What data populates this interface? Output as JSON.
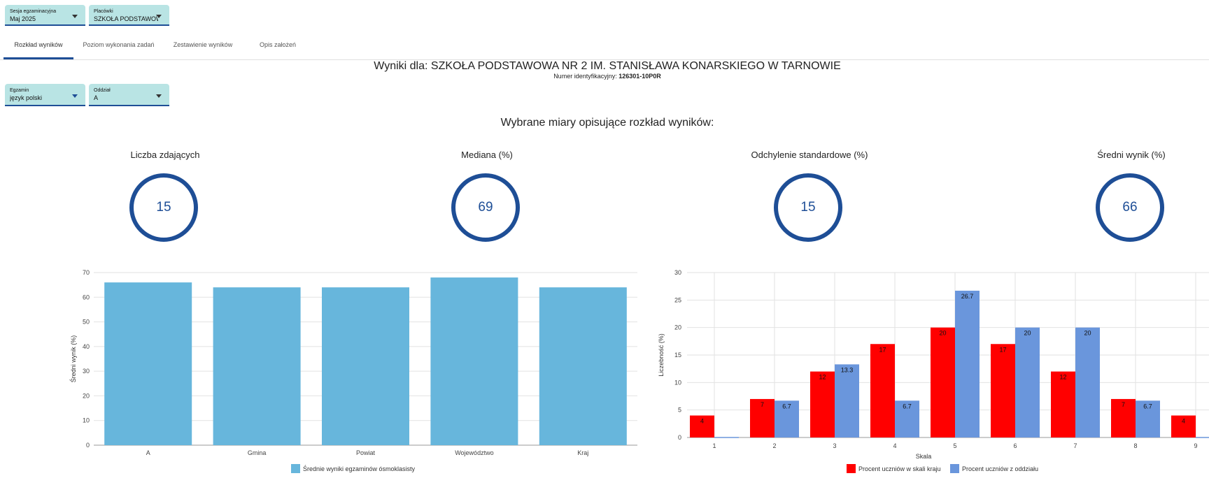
{
  "filters": {
    "session": {
      "label": "Sesja egzaminacyjna",
      "value": "Maj 2025"
    },
    "institution": {
      "label": "Placówki",
      "value": "SZKOŁA PODSTAWOWA..."
    },
    "exam": {
      "label": "Egzamin",
      "value": "język polski"
    },
    "class": {
      "label": "Oddział",
      "value": "A"
    }
  },
  "tabs": [
    {
      "label": "Rozkład wyników",
      "active": true
    },
    {
      "label": "Poziom wykonania zadań",
      "active": false
    },
    {
      "label": "Zestawienie wyników",
      "active": false
    },
    {
      "label": "Opis założeń",
      "active": false
    }
  ],
  "header": {
    "title": "Wyniki dla: SZKOŁA PODSTAWOWA NR 2 IM. STANISŁAWA KONARSKIEGO W TARNOWIE",
    "id_label": "Numer identyfikacyjny:",
    "id_value": "126301-10P0R"
  },
  "measures": {
    "title": "Wybrane miary opisujące rozkład wyników:",
    "items": [
      {
        "label": "Liczba zdających",
        "value": "15"
      },
      {
        "label": "Mediana (%)",
        "value": "69"
      },
      {
        "label": "Odchylenie standardowe (%)",
        "value": "15"
      },
      {
        "label": "Średni wynik (%)",
        "value": "66"
      }
    ]
  },
  "colors": {
    "accent": "#1e4e96",
    "filter_bg": "#b9e4e4",
    "bar_blue": "#67b6dc",
    "red": "#ff0000",
    "blue2": "#6a96dc"
  },
  "chart_data": [
    {
      "type": "bar",
      "categories": [
        "A",
        "Gmina",
        "Powiat",
        "Województwo",
        "Kraj"
      ],
      "series": [
        {
          "name": "Średnie wyniki egzaminów ósmoklasisty",
          "values": [
            66,
            64,
            64,
            68,
            64
          ]
        }
      ],
      "xlabel": "",
      "ylabel": "Średni wynik (%)",
      "ylim": [
        0,
        70
      ],
      "yticks": [
        0,
        10,
        20,
        30,
        40,
        50,
        60,
        70
      ],
      "grid": true,
      "legend": "bottom"
    },
    {
      "type": "bar",
      "categories": [
        "1",
        "2",
        "3",
        "4",
        "5",
        "6",
        "7",
        "8",
        "9"
      ],
      "series": [
        {
          "name": "Procent uczniów w skali kraju",
          "values": [
            4,
            7,
            12,
            17,
            20,
            17,
            12,
            7,
            4
          ],
          "labels": [
            "4",
            "7",
            "12",
            "17",
            "20",
            "17",
            "12",
            "7",
            "4"
          ]
        },
        {
          "name": "Procent uczniów z oddziału",
          "values": [
            0,
            6.7,
            13.3,
            6.7,
            26.7,
            20,
            20,
            6.7,
            0
          ],
          "labels": [
            "",
            "6.7",
            "13.3",
            "6.7",
            "26.7",
            "20",
            "20",
            "6.7",
            ""
          ]
        }
      ],
      "xlabel": "Skala",
      "ylabel": "Liczebność (%)",
      "ylim": [
        0,
        30
      ],
      "yticks": [
        0,
        5,
        10,
        15,
        20,
        25,
        30
      ],
      "grid": true,
      "legend": "bottom"
    }
  ]
}
